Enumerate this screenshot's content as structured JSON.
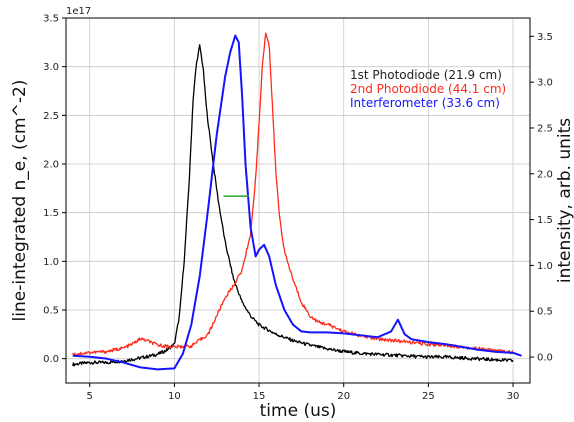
{
  "chart_data": {
    "type": "line",
    "title": "",
    "xlabel": "time (us)",
    "ylabel": "line-integrated n_e, (cm^-2)",
    "ylabel_right": "intensity, arb. units",
    "y_offset_text": "1e17",
    "xlim": [
      3.6,
      31.0
    ],
    "ylim": [
      -0.25,
      3.5
    ],
    "ylim_right": [
      -0.283,
      3.7
    ],
    "x_ticks": [
      5,
      10,
      15,
      20,
      25,
      30
    ],
    "y_ticks": [
      0.0,
      0.5,
      1.0,
      1.5,
      2.0,
      2.5,
      3.0,
      3.5
    ],
    "y_ticks_right": [
      0.0,
      0.5,
      1.0,
      1.5,
      2.0,
      2.5,
      3.0,
      3.5
    ],
    "x_tick_labels": [
      "5",
      "10",
      "15",
      "20",
      "25",
      "30"
    ],
    "y_tick_labels": [
      "0.0",
      "0.5",
      "1.0",
      "1.5",
      "2.0",
      "2.5",
      "3.0",
      "3.5"
    ],
    "y_tick_labels_right": [
      "0.0",
      "0.5",
      "1.0",
      "1.5",
      "2.0",
      "2.5",
      "3.0",
      "3.5"
    ],
    "grid": true,
    "legend_position": "top-right",
    "series": [
      {
        "name": "1st Photodiode (21.9 cm)",
        "color": "#000000",
        "axis": "right",
        "x": [
          4.0,
          5.0,
          6.0,
          7.0,
          8.0,
          9.0,
          9.5,
          10.0,
          10.3,
          10.6,
          10.9,
          11.1,
          11.3,
          11.5,
          11.7,
          11.9,
          12.1,
          12.3,
          12.6,
          13.0,
          13.5,
          14.0,
          14.5,
          15.0,
          16.0,
          17.0,
          18.0,
          19.0,
          20.0,
          21.0,
          22.0,
          23.0,
          24.0,
          25.0,
          26.0,
          27.0,
          28.0,
          29.0,
          30.0
        ],
        "y": [
          -0.08,
          -0.06,
          -0.06,
          -0.04,
          -0.01,
          0.03,
          0.07,
          0.14,
          0.45,
          1.1,
          2.0,
          2.8,
          3.2,
          3.4,
          3.15,
          2.7,
          2.4,
          2.1,
          1.7,
          1.25,
          0.85,
          0.6,
          0.45,
          0.35,
          0.25,
          0.18,
          0.13,
          0.09,
          0.06,
          0.04,
          0.03,
          0.02,
          0.01,
          0.0,
          0.0,
          -0.01,
          -0.02,
          -0.03,
          -0.04
        ]
      },
      {
        "name": "2nd Photodiode (44.1 cm)",
        "color": "#ff2a1a",
        "axis": "right",
        "x": [
          4.0,
          5.0,
          6.0,
          7.0,
          7.5,
          8.0,
          8.5,
          9.0,
          10.0,
          11.0,
          12.0,
          12.5,
          13.0,
          13.5,
          14.0,
          14.5,
          14.8,
          15.0,
          15.2,
          15.4,
          15.6,
          15.8,
          16.0,
          16.2,
          16.5,
          17.0,
          17.5,
          18.0,
          18.5,
          19.0,
          19.5,
          20.0,
          21.0,
          22.0,
          23.0,
          24.0,
          25.0,
          26.0,
          27.0,
          28.0,
          29.0,
          30.0
        ],
        "y": [
          0.03,
          0.05,
          0.06,
          0.1,
          0.14,
          0.2,
          0.17,
          0.13,
          0.11,
          0.12,
          0.25,
          0.45,
          0.65,
          0.78,
          0.95,
          1.35,
          1.95,
          2.55,
          3.2,
          3.55,
          3.4,
          2.7,
          2.0,
          1.55,
          1.15,
          0.85,
          0.6,
          0.45,
          0.38,
          0.36,
          0.32,
          0.28,
          0.23,
          0.2,
          0.18,
          0.16,
          0.14,
          0.13,
          0.11,
          0.09,
          0.07,
          0.05
        ]
      },
      {
        "name": "Interferometer (33.6 cm)",
        "color": "#1414ff",
        "axis": "left",
        "x": [
          4.0,
          5.0,
          6.0,
          7.0,
          8.0,
          9.0,
          10.0,
          10.5,
          11.0,
          11.5,
          12.0,
          12.5,
          13.0,
          13.3,
          13.6,
          13.8,
          14.0,
          14.2,
          14.5,
          14.8,
          15.0,
          15.3,
          15.6,
          16.0,
          16.5,
          17.0,
          17.5,
          18.0,
          19.0,
          20.0,
          21.0,
          22.0,
          22.8,
          23.2,
          23.6,
          24.0,
          25.0,
          26.0,
          27.0,
          28.0,
          29.0,
          30.0,
          30.5
        ],
        "y": [
          0.03,
          0.02,
          0.0,
          -0.04,
          -0.09,
          -0.11,
          -0.1,
          0.05,
          0.35,
          0.85,
          1.55,
          2.3,
          2.9,
          3.15,
          3.32,
          3.25,
          2.7,
          2.0,
          1.35,
          1.05,
          1.12,
          1.17,
          1.05,
          0.75,
          0.5,
          0.35,
          0.28,
          0.27,
          0.27,
          0.26,
          0.24,
          0.22,
          0.28,
          0.4,
          0.25,
          0.2,
          0.17,
          0.15,
          0.12,
          0.09,
          0.07,
          0.06,
          0.03
        ]
      },
      {
        "name": "",
        "color": "#2ca02c",
        "axis": "left",
        "x": [
          12.9,
          14.4
        ],
        "y": [
          1.67,
          1.67
        ]
      }
    ]
  }
}
